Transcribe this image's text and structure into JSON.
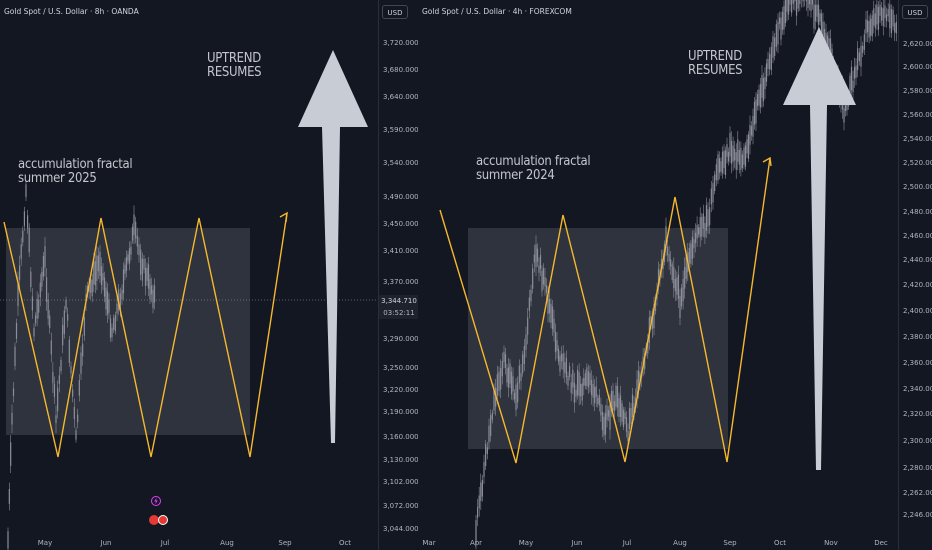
{
  "left_chart": {
    "symbol": "Gold Spot / U.S. Dollar · 8h · OANDA",
    "currency_button": "USD",
    "annotation_title_line1": "accumulation fractal",
    "annotation_title_line2": "summer 2025",
    "arrow_label_line1": "UPTREND",
    "arrow_label_line2": "RESUMES",
    "current_price": "3,344.710",
    "countdown": "03:52:11",
    "price_ticks": [
      "3,720.000",
      "3,680.000",
      "3,640.000",
      "3,590.000",
      "3,540.000",
      "3,490.000",
      "3,450.000",
      "3,410.000",
      "3,370.000",
      "3,290.000",
      "3,250.000",
      "3,220.000",
      "3,190.000",
      "3,160.000",
      "3,130.000",
      "3,102.000",
      "3,072.000",
      "3,044.000"
    ],
    "date_ticks": [
      "May",
      "Jun",
      "Jul",
      "Aug",
      "Sep",
      "Oct"
    ]
  },
  "right_chart": {
    "symbol": "Gold Spot / U.S. Dollar · 4h · FOREXCOM",
    "currency_button": "USD",
    "annotation_title_line1": "accumulation fractal",
    "annotation_title_line2": "summer 2024",
    "arrow_label_line1": "UPTREND",
    "arrow_label_line2": "RESUMES",
    "price_ticks": [
      "2,620.000",
      "2,600.000",
      "2,580.000",
      "2,560.000",
      "2,540.000",
      "2,520.000",
      "2,500.000",
      "2,480.000",
      "2,460.000",
      "2,440.000",
      "2,420.000",
      "2,400.000",
      "2,380.000",
      "2,360.000",
      "2,340.000",
      "2,320.000",
      "2,300.000",
      "2,280.000",
      "2,262.000",
      "2,246.000"
    ],
    "date_ticks": [
      "Mar",
      "Apr",
      "May",
      "Jun",
      "Jul",
      "Aug",
      "Sep",
      "Oct",
      "Nov",
      "Dec"
    ]
  },
  "colors": {
    "background": "#131722",
    "fractal_line": "#f5b82e",
    "range_box": "#3a3d47",
    "arrow": "#c8ccd4",
    "candles": "#8c8f99"
  }
}
